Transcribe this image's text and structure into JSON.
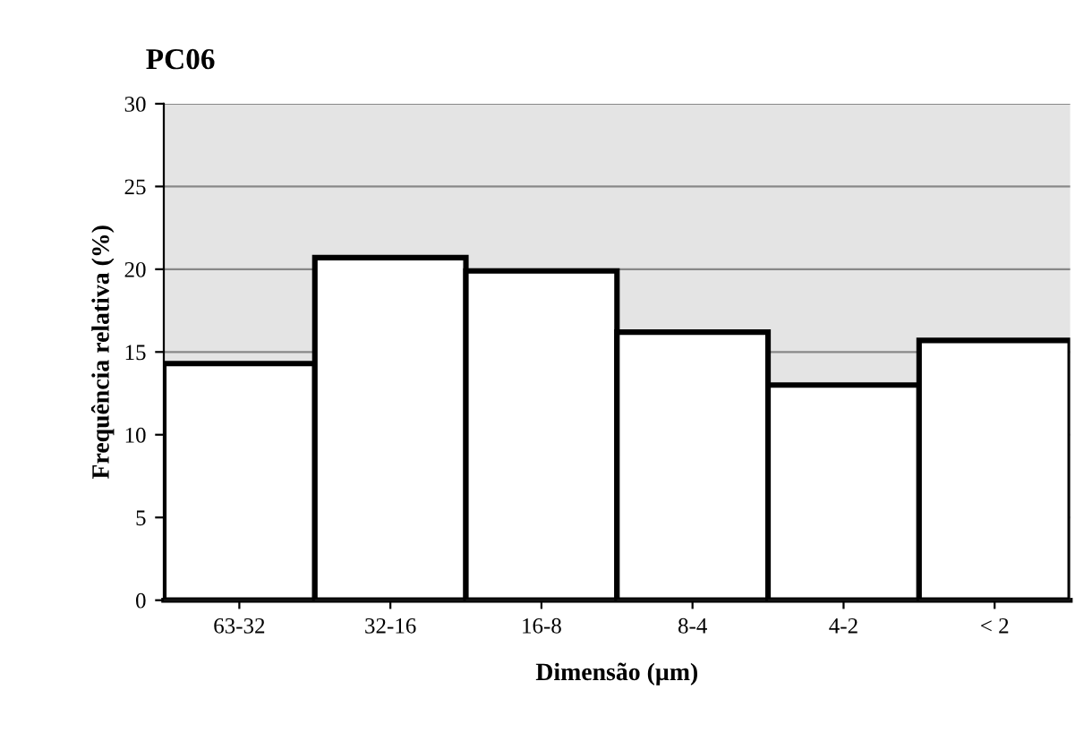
{
  "chart_data": {
    "type": "bar",
    "title": "PC06",
    "xlabel": "Dimensão (µm)",
    "ylabel": "Frequência relativa (%)",
    "categories": [
      "63-32",
      "32-16",
      "16-8",
      "8-4",
      "4-2",
      "< 2"
    ],
    "values": [
      14.3,
      20.7,
      19.9,
      16.2,
      13.0,
      15.7
    ],
    "color": "#ffffff",
    "ylim": [
      0,
      30
    ],
    "yticks": [
      0,
      5,
      10,
      15,
      20,
      25,
      30
    ],
    "grid": "y",
    "legend": false
  }
}
